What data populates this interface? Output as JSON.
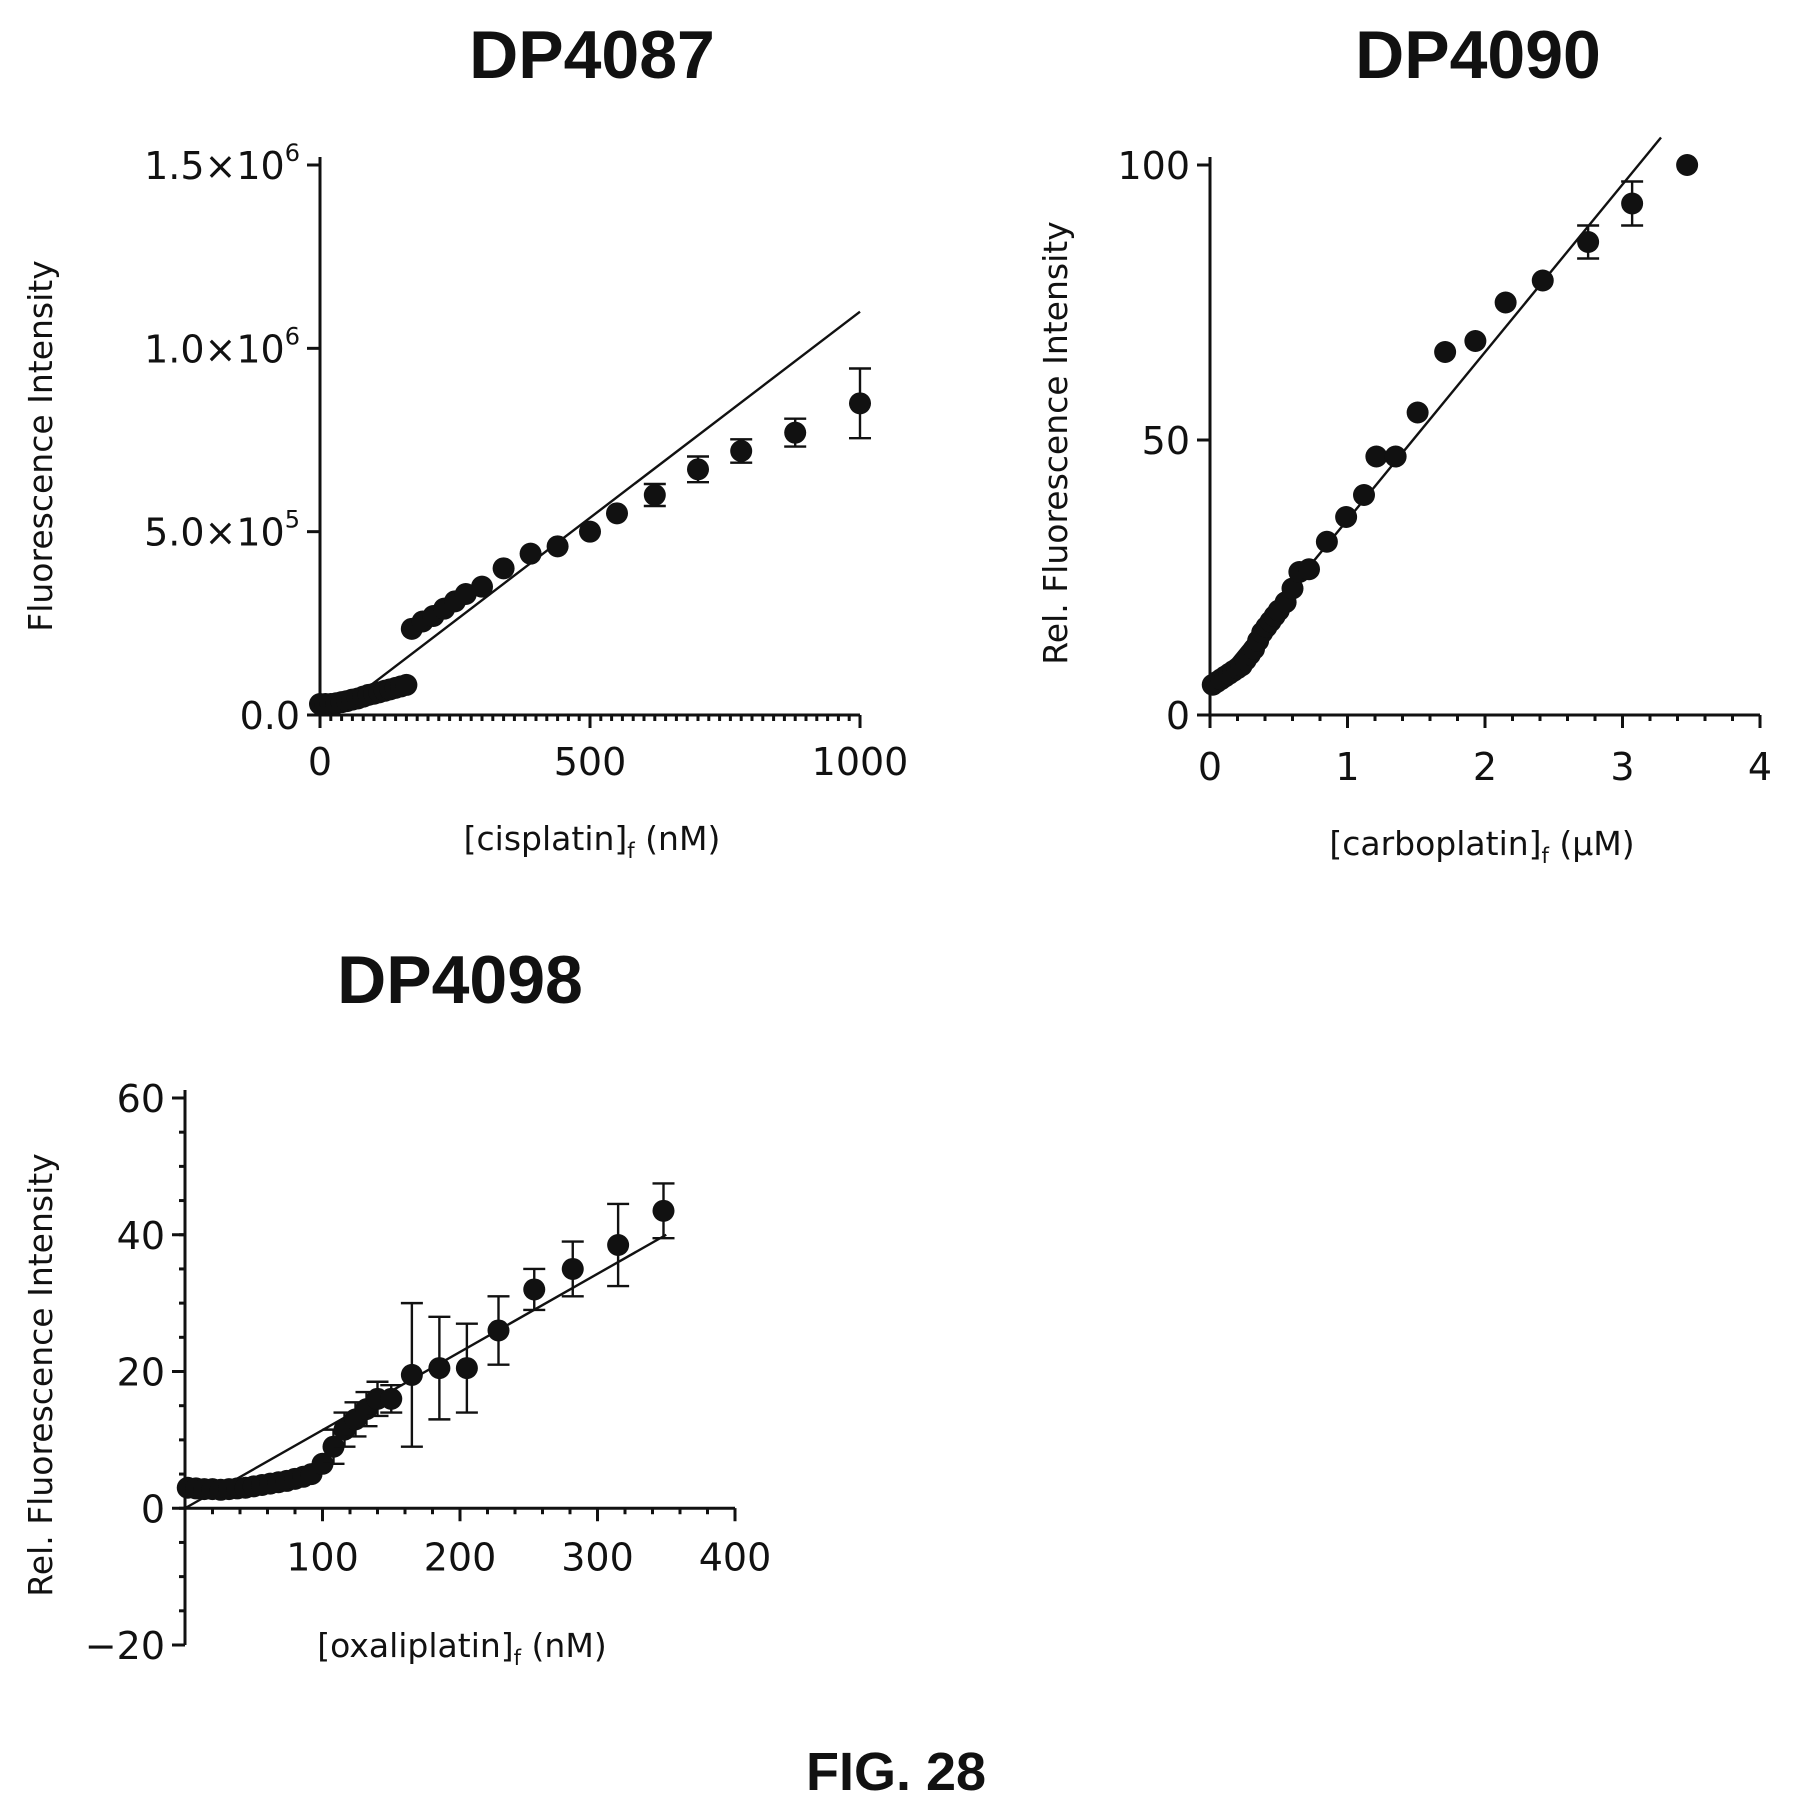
{
  "figure_label": "FIG. 28",
  "chart_data": [
    {
      "type": "scatter",
      "title": "DP4087",
      "xlabel_main": "[cisplatin]",
      "xlabel_sub": "f",
      "xlabel_unit": " (nM)",
      "ylabel": "Fluorescence Intensity",
      "xlim": [
        0,
        1000
      ],
      "ylim": [
        0,
        1500000
      ],
      "x_ticks": [
        0,
        500,
        1000
      ],
      "x_tick_labels": [
        "0",
        "500",
        "1000"
      ],
      "y_ticks": [
        0,
        500000,
        1000000,
        1500000
      ],
      "y_tick_labels": [
        {
          "base": "0.0",
          "exp": ""
        },
        {
          "base": "5.0×10",
          "exp": "5"
        },
        {
          "base": "1.0×10",
          "exp": "6"
        },
        {
          "base": "1.5×10",
          "exp": "6"
        }
      ],
      "grid": false,
      "fit_line": {
        "x": [
          75,
          1000
        ],
        "y": [
          60000,
          1100000
        ]
      },
      "series": [
        {
          "x": [
            0,
            10,
            20,
            30,
            40,
            50,
            60,
            70,
            80,
            90,
            100,
            110,
            120,
            130,
            140,
            150,
            160,
            170,
            190,
            210,
            230,
            250,
            270,
            300,
            340,
            390,
            440,
            500,
            550,
            620,
            700,
            780,
            880,
            1000
          ],
          "y": [
            30000,
            30000,
            30000,
            32000,
            35000,
            38000,
            42000,
            45000,
            50000,
            55000,
            58000,
            62000,
            66000,
            70000,
            74000,
            78000,
            82000,
            235000,
            255000,
            270000,
            290000,
            310000,
            330000,
            350000,
            400000,
            440000,
            460000,
            500000,
            550000,
            600000,
            670000,
            720000,
            770000,
            850000
          ],
          "yerr": [
            0,
            0,
            0,
            0,
            0,
            0,
            0,
            0,
            0,
            0,
            0,
            0,
            0,
            0,
            0,
            0,
            0,
            0,
            0,
            0,
            0,
            0,
            0,
            0,
            0,
            0,
            0,
            0,
            0,
            30000,
            35000,
            32000,
            38000,
            95000
          ]
        }
      ]
    },
    {
      "type": "scatter",
      "title": "DP4090",
      "xlabel_main": "[carboplatin]",
      "xlabel_sub": "f",
      "xlabel_unit": " (μM)",
      "ylabel": "Rel. Fluorescence Intensity",
      "xlim": [
        0,
        4
      ],
      "ylim": [
        0,
        100
      ],
      "x_ticks": [
        0,
        1,
        2,
        3,
        4
      ],
      "x_tick_labels": [
        "0",
        "1",
        "2",
        "3",
        "4"
      ],
      "y_ticks": [
        0,
        50,
        100
      ],
      "y_tick_labels": [
        "0",
        "50",
        "100"
      ],
      "grid": false,
      "fit_line": {
        "x": [
          0,
          3.28
        ],
        "y": [
          5,
          105
        ]
      },
      "series": [
        {
          "x": [
            0.02,
            0.05,
            0.08,
            0.11,
            0.14,
            0.17,
            0.2,
            0.23,
            0.26,
            0.29,
            0.32,
            0.35,
            0.38,
            0.41,
            0.44,
            0.47,
            0.5,
            0.55,
            0.6,
            0.65,
            0.72,
            0.85,
            0.99,
            1.12,
            1.21,
            1.35,
            1.51,
            1.71,
            1.93,
            2.15,
            2.42,
            2.75,
            3.07,
            3.47
          ],
          "y": [
            5.5,
            6,
            6.5,
            7,
            7.5,
            8,
            8.5,
            9,
            10,
            11,
            12,
            13.5,
            15,
            16,
            17,
            18,
            19,
            20.5,
            23,
            26,
            26.5,
            31.5,
            36,
            40,
            47,
            47,
            55,
            66,
            68,
            75,
            79,
            86,
            93,
            100
          ],
          "yerr": [
            0,
            0,
            0,
            0,
            0,
            0,
            0,
            0,
            0,
            0,
            0,
            0,
            0,
            0,
            0,
            0,
            0,
            0,
            0,
            0,
            0,
            0,
            0,
            0,
            0,
            0,
            0,
            0,
            0,
            0,
            0,
            3,
            4,
            0
          ]
        }
      ]
    },
    {
      "type": "scatter",
      "title": "DP4098",
      "xlabel_main": "[oxaliplatin]",
      "xlabel_sub": "f",
      "xlabel_unit": " (nM)",
      "ylabel": "Rel. Fluorescence Intensity",
      "xlim": [
        0,
        400
      ],
      "ylim": [
        -20,
        60
      ],
      "x_ticks": [
        100,
        200,
        300,
        400
      ],
      "x_tick_labels": [
        "100",
        "200",
        "300",
        "400"
      ],
      "y_ticks": [
        -20,
        0,
        20,
        40,
        60
      ],
      "y_tick_labels": [
        "−20",
        "0",
        "20",
        "40",
        "60"
      ],
      "grid": false,
      "fit_line": {
        "x": [
          0,
          350
        ],
        "y": [
          0,
          40
        ]
      },
      "series": [
        {
          "x": [
            2,
            8,
            14,
            20,
            26,
            32,
            38,
            44,
            50,
            56,
            62,
            68,
            74,
            80,
            86,
            92,
            100,
            108,
            116,
            124,
            132,
            140,
            150,
            165,
            185,
            205,
            228,
            254,
            282,
            315,
            348
          ],
          "y": [
            3,
            2.9,
            2.8,
            2.8,
            2.7,
            2.8,
            2.9,
            3,
            3.2,
            3.4,
            3.6,
            3.8,
            4,
            4.3,
            4.6,
            5,
            6.5,
            9,
            11.5,
            13,
            14.5,
            16,
            16,
            19.5,
            20.5,
            20.5,
            26,
            32,
            35,
            38.5,
            43.5
          ],
          "yerr": [
            0,
            0,
            0,
            0,
            0,
            0,
            0,
            0,
            0,
            0,
            0,
            0,
            0,
            0,
            0,
            0,
            0,
            2.5,
            2.5,
            2.5,
            2.5,
            2.5,
            2,
            10.5,
            7.5,
            6.5,
            5,
            3,
            4,
            6,
            4
          ]
        }
      ]
    }
  ]
}
